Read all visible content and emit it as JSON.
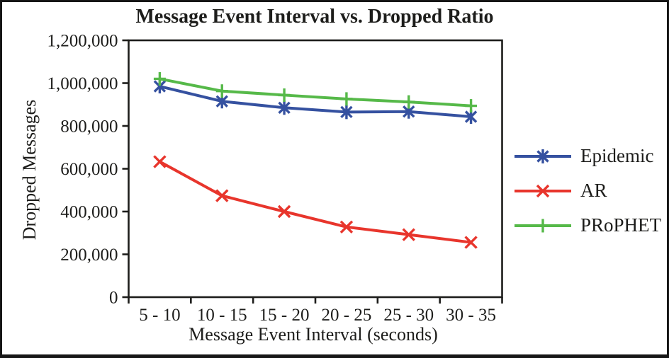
{
  "chart_data": {
    "type": "line",
    "title": "Message Event Interval vs. Dropped Ratio",
    "xlabel": "Message Event Interval (seconds)",
    "ylabel": "Dropped Messages",
    "categories": [
      "5 - 10",
      "10 - 15",
      "15 - 20",
      "20 - 25",
      "25 - 30",
      "30 - 35"
    ],
    "series": [
      {
        "name": "Epidemic",
        "color": "#3551A0",
        "marker": "asterisk",
        "values": [
          985000,
          915000,
          885000,
          865000,
          867000,
          843000
        ]
      },
      {
        "name": "AR",
        "color": "#E8352C",
        "marker": "x",
        "values": [
          633000,
          474000,
          400000,
          328000,
          292000,
          256000
        ]
      },
      {
        "name": "PRoPHET",
        "color": "#56B949",
        "marker": "plus",
        "values": [
          1020000,
          963000,
          944000,
          926000,
          912000,
          894000
        ]
      }
    ],
    "ylim": [
      0,
      1200000
    ],
    "y_ticks": [
      {
        "value": 0,
        "label": "0"
      },
      {
        "value": 200000,
        "label": "200,000"
      },
      {
        "value": 400000,
        "label": "400,000"
      },
      {
        "value": 600000,
        "label": "600,000"
      },
      {
        "value": 800000,
        "label": "800,000"
      },
      {
        "value": 1000000,
        "label": "1,000,000"
      },
      {
        "value": 1200000,
        "label": "1,200,000"
      }
    ],
    "grid": false,
    "legend_position": "right",
    "frame_color": "#1d1d1b"
  }
}
